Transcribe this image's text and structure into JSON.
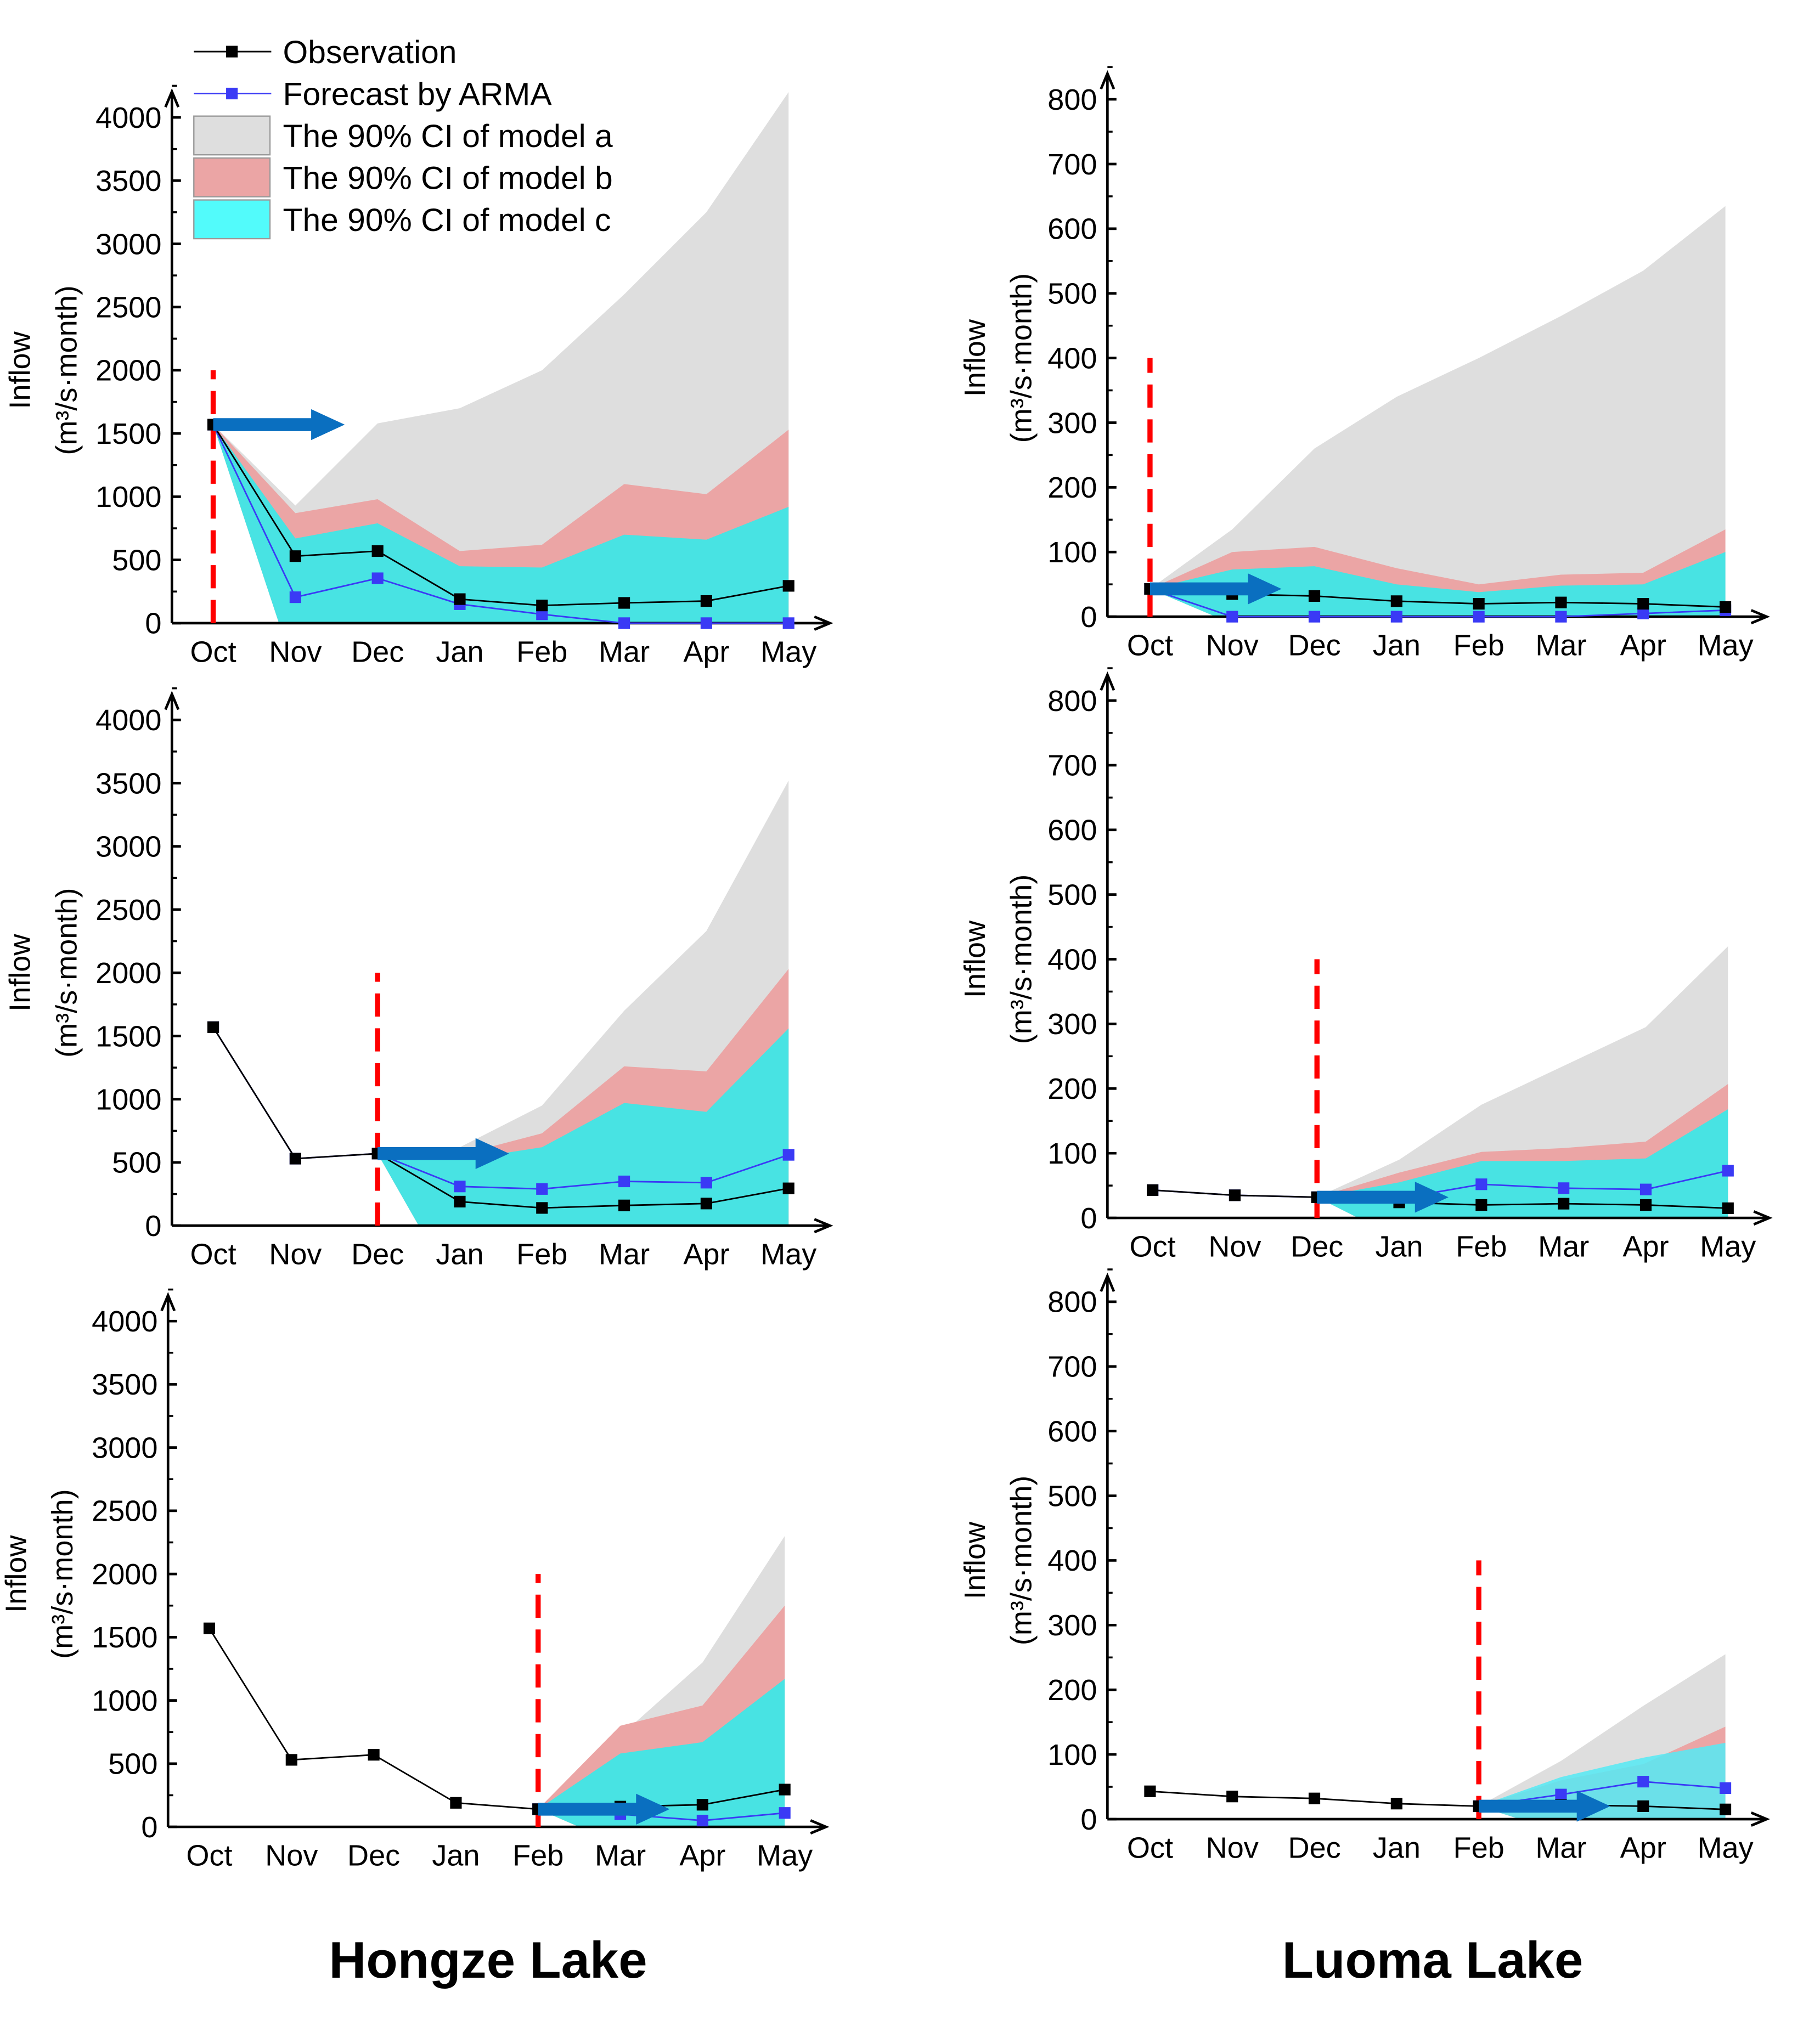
{
  "colors": {
    "band_a": "#dedede",
    "band_b": "#eba5a5",
    "band_c": "#48e3e3",
    "band_c_light": "#55eaf5",
    "observation": "#000000",
    "forecast": "#3a3af5",
    "start_line": "#ff0000",
    "arrow": "#0a6fc0"
  },
  "titles": {
    "left": "Hongze Lake",
    "right": "Luoma Lake"
  },
  "legend": [
    "Observation",
    "Forecast by ARMA",
    "The 90% CI of model a",
    "The 90% CI of model b",
    "The 90% CI of model c"
  ],
  "ylabel_line1": "Inflow",
  "ylabel_line2": "(m³/s·month)",
  "chart_data": [
    {
      "type": "area",
      "lake": "Hongze Lake",
      "start": "Oct",
      "categories": [
        "Oct",
        "Nov",
        "Dec",
        "Jan",
        "Feb",
        "Mar",
        "Apr",
        "May"
      ],
      "ylim": [
        0,
        4000
      ],
      "yticks": [
        "0",
        "500",
        "1000",
        "1500",
        "2000",
        "2500",
        "3000",
        "3500",
        "4000"
      ],
      "observation": [
        1570,
        530,
        570,
        190,
        140,
        160,
        175,
        295
      ],
      "forecast": [
        1570,
        205,
        355,
        150,
        70,
        0,
        0,
        0
      ],
      "ci_a": [
        1570,
        930,
        1580,
        1700,
        2000,
        2600,
        3250,
        4200
      ],
      "ci_b": [
        1570,
        870,
        980,
        570,
        620,
        1100,
        1020,
        1530
      ],
      "ci_c": [
        1570,
        670,
        790,
        450,
        440,
        700,
        660,
        920
      ]
    },
    {
      "type": "area",
      "lake": "Luoma Lake",
      "start": "Oct",
      "categories": [
        "Oct",
        "Nov",
        "Dec",
        "Jan",
        "Feb",
        "Mar",
        "Apr",
        "May"
      ],
      "ylim": [
        0,
        800
      ],
      "yticks": [
        "0",
        "100",
        "200",
        "300",
        "400",
        "500",
        "600",
        "700",
        "800"
      ],
      "observation": [
        43,
        35,
        32,
        24,
        20,
        22,
        20,
        15
      ],
      "forecast": [
        43,
        0,
        0,
        0,
        0,
        0,
        5,
        10
      ],
      "ci_a": [
        43,
        135,
        260,
        340,
        400,
        465,
        535,
        635
      ],
      "ci_b": [
        43,
        100,
        108,
        75,
        50,
        65,
        68,
        135
      ],
      "ci_c": [
        43,
        73,
        78,
        50,
        38,
        48,
        50,
        100
      ]
    },
    {
      "type": "area",
      "lake": "Hongze Lake",
      "start": "Dec",
      "categories": [
        "Oct",
        "Nov",
        "Dec",
        "Jan",
        "Feb",
        "Mar",
        "Apr",
        "May"
      ],
      "ylim": [
        0,
        4000
      ],
      "yticks": [
        "0",
        "500",
        "1000",
        "1500",
        "2000",
        "2500",
        "3000",
        "3500",
        "4000"
      ],
      "observation": [
        1570,
        530,
        570,
        190,
        140,
        160,
        175,
        295
      ],
      "forecast": [
        1570,
        530,
        570,
        310,
        290,
        350,
        340,
        560
      ],
      "ci_a": [
        null,
        null,
        570,
        620,
        950,
        1700,
        2330,
        3520
      ],
      "ci_b": [
        null,
        null,
        570,
        560,
        730,
        1260,
        1220,
        2030
      ],
      "ci_c": [
        null,
        null,
        570,
        520,
        620,
        970,
        900,
        1560
      ]
    },
    {
      "type": "area",
      "lake": "Luoma Lake",
      "start": "Dec",
      "categories": [
        "Oct",
        "Nov",
        "Dec",
        "Jan",
        "Feb",
        "Mar",
        "Apr",
        "May"
      ],
      "ylim": [
        0,
        800
      ],
      "yticks": [
        "0",
        "100",
        "200",
        "300",
        "400",
        "500",
        "600",
        "700",
        "800"
      ],
      "observation": [
        43,
        35,
        32,
        24,
        20,
        22,
        20,
        15
      ],
      "forecast": [
        43,
        35,
        32,
        30,
        52,
        46,
        44,
        73
      ],
      "ci_a": [
        null,
        null,
        32,
        90,
        175,
        235,
        295,
        420
      ],
      "ci_b": [
        null,
        null,
        32,
        70,
        102,
        108,
        118,
        207
      ],
      "ci_c": [
        null,
        null,
        32,
        55,
        88,
        88,
        92,
        168
      ]
    },
    {
      "type": "area",
      "lake": "Hongze Lake",
      "start": "Feb",
      "categories": [
        "Oct",
        "Nov",
        "Dec",
        "Jan",
        "Feb",
        "Mar",
        "Apr",
        "May"
      ],
      "ylim": [
        0,
        4000
      ],
      "yticks": [
        "0",
        "500",
        "1000",
        "1500",
        "2000",
        "2500",
        "3000",
        "3500",
        "4000"
      ],
      "observation": [
        1570,
        530,
        570,
        190,
        140,
        160,
        175,
        295
      ],
      "forecast": [
        null,
        null,
        null,
        null,
        140,
        100,
        50,
        110
      ],
      "ci_a": [
        null,
        null,
        null,
        null,
        140,
        720,
        1300,
        2300
      ],
      "ci_b": [
        null,
        null,
        null,
        null,
        140,
        800,
        960,
        1750
      ],
      "ci_c": [
        null,
        null,
        null,
        null,
        140,
        580,
        670,
        1170
      ]
    },
    {
      "type": "area",
      "lake": "Luoma Lake",
      "start": "Feb",
      "categories": [
        "Oct",
        "Nov",
        "Dec",
        "Jan",
        "Feb",
        "Mar",
        "Apr",
        "May"
      ],
      "ylim": [
        0,
        800
      ],
      "yticks": [
        "0",
        "100",
        "200",
        "300",
        "400",
        "500",
        "600",
        "700",
        "800"
      ],
      "observation": [
        43,
        35,
        32,
        24,
        20,
        22,
        20,
        15
      ],
      "forecast": [
        null,
        null,
        null,
        null,
        20,
        38,
        58,
        48
      ],
      "ci_a": [
        null,
        null,
        null,
        null,
        20,
        90,
        175,
        255
      ],
      "ci_b": [
        null,
        null,
        null,
        null,
        20,
        60,
        85,
        143
      ],
      "ci_c": [
        null,
        null,
        null,
        null,
        20,
        65,
        95,
        118
      ]
    }
  ]
}
